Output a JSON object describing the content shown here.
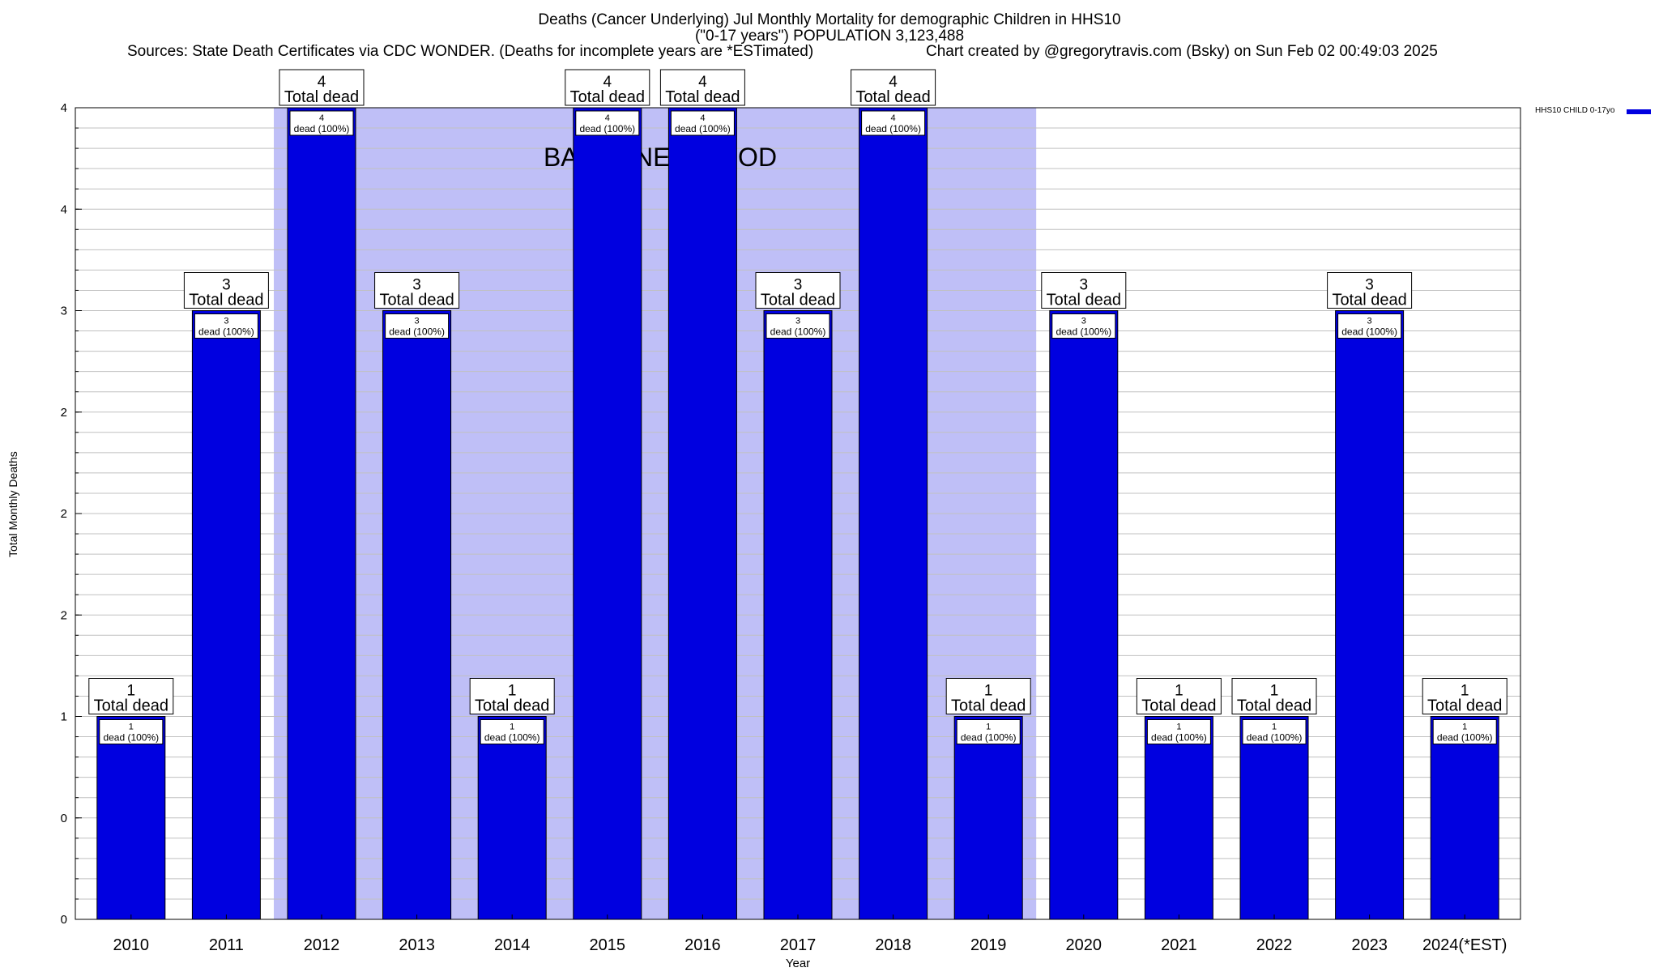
{
  "title_line1": "Deaths (Cancer Underlying) Jul Monthly Mortality for demographic Children in HHS10",
  "title_line2": "(\"0-17 years\") POPULATION 3,123,488",
  "sources": "Sources: State Death Certificates via CDC WONDER. (Deaths for incomplete years are *ESTimated)",
  "credit": "Chart created by @gregorytravis.com (Bsky) on Sun Feb 02 00:49:03 2025",
  "colors": {
    "bar": "#0000e0",
    "baseline": "#bfbff7",
    "grid": "#c0c0c0"
  },
  "chart_data": {
    "type": "bar",
    "title": "Deaths (Cancer Underlying) Jul Monthly Mortality for demographic Children in HHS10",
    "xlabel": "Year",
    "ylabel": "Total Monthly Deaths",
    "categories": [
      "2010",
      "2011",
      "2012",
      "2013",
      "2014",
      "2015",
      "2016",
      "2017",
      "2018",
      "2019",
      "2020",
      "2021",
      "2022",
      "2023",
      "2024(*EST)"
    ],
    "series": [
      {
        "name": "HHS10 CHILD 0-17yo",
        "values": [
          1,
          3,
          4,
          3,
          1,
          4,
          4,
          3,
          4,
          1,
          3,
          1,
          1,
          3,
          1
        ]
      }
    ],
    "ylim": [
      0,
      4
    ],
    "y_tick_labels": [
      "0",
      "0",
      "1",
      "2",
      "2",
      "2",
      "3",
      "4",
      "4"
    ],
    "inner_label_suffix": "dead (100%)",
    "total_label_suffix": "Total dead",
    "baseline_period": {
      "label": "BASELINE PERIOD",
      "from": "2012",
      "to": "2019"
    },
    "grid": true,
    "legend_position": "top-right"
  }
}
